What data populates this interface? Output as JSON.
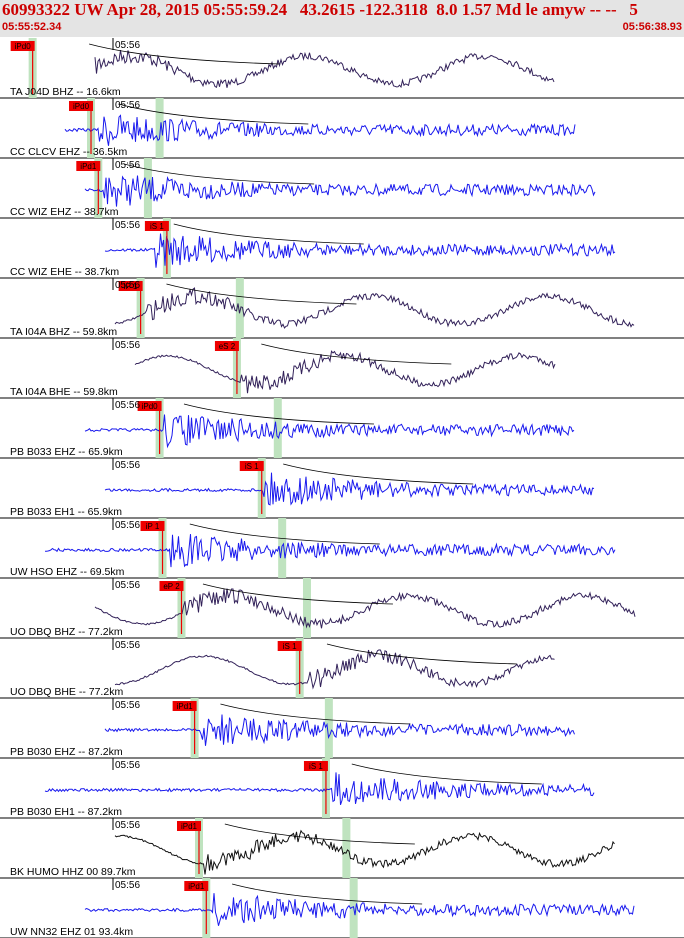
{
  "header": {
    "title": "60993322 UW Apr 28, 2015 05:55:59.24   43.2615 -122.3118  8.0 1.57 Md le amyw -- --   5",
    "start_time": "05:55:52.34",
    "end_time": "05:56:38.93"
  },
  "colors": {
    "velocity_trace": "#1a1aee",
    "broadband_trace": "#33225a",
    "pick": "#ee0000",
    "pick_window": "#bfe3bf",
    "theoretical_curve": "#000000"
  },
  "chart_data": {
    "type": "seismogram",
    "time_axis": {
      "start": "05:55:52.34",
      "end": "05:56:38.93",
      "minute_tick_label": "05:56"
    },
    "traces": [
      {
        "label": "TA J04D BHZ -- 16.6km",
        "tick": "05:56",
        "pick_label": "iPd0",
        "color": "#33225a",
        "pick_time_s": 2.1,
        "s_pick_time_s": null,
        "event": 4.6
      },
      {
        "label": "CC CLCV EHZ -- 36.5km",
        "tick": "05:56",
        "pick_label": "iPd0",
        "color": "#1a1aee",
        "pick_time_s": 6.1,
        "s_pick_time_s": 10.8,
        "event": 6.6
      },
      {
        "label": "CC WIZ EHZ -- 38.7km",
        "tick": "05:56",
        "pick_label": "iPd1",
        "color": "#1a1aee",
        "pick_time_s": 6.6,
        "s_pick_time_s": 10.0,
        "event": 7.0
      },
      {
        "label": "CC WIZ EHE -- 38.7km",
        "tick": "05:56",
        "pick_label": "iS 1",
        "color": "#1a1aee",
        "pick_time_s": 11.3,
        "s_pick_time_s": null,
        "event": 10.4
      },
      {
        "label": "TA I04A BHZ -- 59.8km",
        "tick": "05:56",
        "pick_label": "iP 1",
        "color": "#33225a",
        "pick_time_s": 9.5,
        "s_pick_time_s": 16.3,
        "event": 9.9
      },
      {
        "label": "TA I04A BHE -- 59.8km",
        "tick": "05:56",
        "pick_label": "eS 2",
        "color": "#33225a",
        "pick_time_s": 16.1,
        "s_pick_time_s": null,
        "event": 16.4
      },
      {
        "label": "PB B033 EHZ -- 65.9km",
        "tick": "05:56",
        "pick_label": "iPd0",
        "color": "#1a1aee",
        "pick_time_s": 10.8,
        "s_pick_time_s": 18.9,
        "event": 11.1
      },
      {
        "label": "PB B033 EH1 -- 65.9km",
        "tick": "05:56",
        "pick_label": "iS 1",
        "color": "#1a1aee",
        "pick_time_s": 17.8,
        "s_pick_time_s": null,
        "event": 17.9
      },
      {
        "label": "UW HSO EHZ -- 69.5km",
        "tick": "05:56",
        "pick_label": "iP 1",
        "color": "#1a1aee",
        "pick_time_s": 11.0,
        "s_pick_time_s": 19.2,
        "event": 11.5
      },
      {
        "label": "UO DBQ BHZ -- 77.2km",
        "tick": "05:56",
        "pick_label": "eP 2",
        "color": "#33225a",
        "pick_time_s": 12.3,
        "s_pick_time_s": 20.9,
        "event": 12.4
      },
      {
        "label": "UO DBQ BHE -- 77.2km",
        "tick": "05:56",
        "pick_label": "iS 1",
        "color": "#33225a",
        "pick_time_s": 20.4,
        "s_pick_time_s": null,
        "event": 20.9
      },
      {
        "label": "PB B030 EHZ -- 87.2km",
        "tick": "05:56",
        "pick_label": "iPd1",
        "color": "#1a1aee",
        "pick_time_s": 13.2,
        "s_pick_time_s": 22.4,
        "event": 13.6
      },
      {
        "label": "PB B030 EH1 -- 87.2km",
        "tick": "05:56",
        "pick_label": "iS 1",
        "color": "#1a1aee",
        "pick_time_s": 22.2,
        "s_pick_time_s": null,
        "event": 22.6
      },
      {
        "label": "BK HUMO HHZ 00 89.7km",
        "tick": "05:56",
        "pick_label": "iPd1",
        "color": "#111111",
        "pick_time_s": 13.5,
        "s_pick_time_s": 23.6,
        "event": 13.9
      },
      {
        "label": "UW NN32 EHZ 01 93.4km",
        "tick": "05:56",
        "pick_label": "iPd1",
        "color": "#1a1aee",
        "pick_time_s": 14.0,
        "s_pick_time_s": 24.1,
        "event": 14.4
      }
    ]
  }
}
